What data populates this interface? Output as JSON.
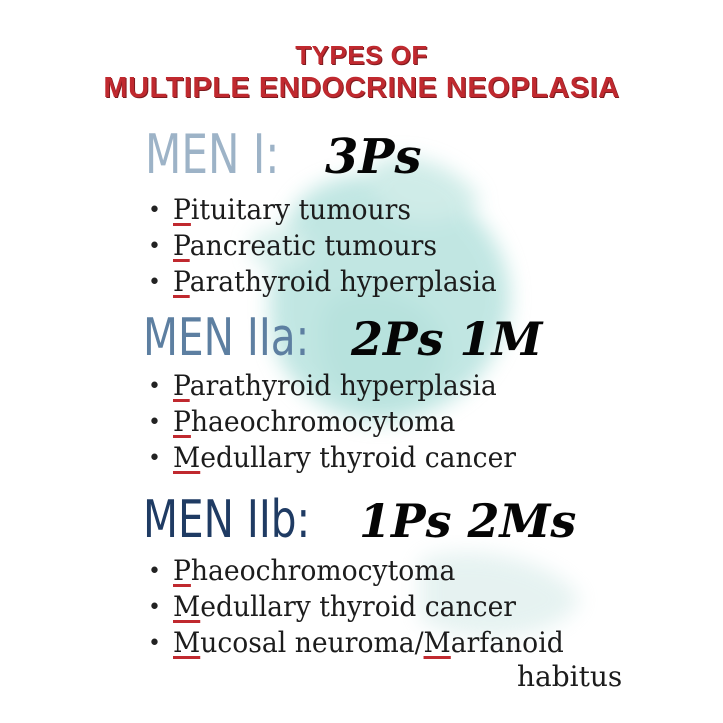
{
  "title": {
    "line1": "Types of",
    "line2": "Multiple Endocrine Neoplasia"
  },
  "colors": {
    "title_red": "#c0292f",
    "men1_blue": "#9db3c7",
    "men2a_blue": "#5d7fa1",
    "men2b_blue": "#1f3b63",
    "watercolor_teal": "#8fd3cc",
    "underline_red": "#c0292f"
  },
  "sections": [
    {
      "label": "MEN I:",
      "code": "3Ps",
      "items": [
        {
          "initial": "P",
          "rest": "ituitary tumours"
        },
        {
          "initial": "P",
          "rest": "ancreatic tumours"
        },
        {
          "initial": "P",
          "rest": "arathyroid hyperplasia"
        }
      ]
    },
    {
      "label": "MEN IIa:",
      "code": "2Ps 1M",
      "items": [
        {
          "initial": "P",
          "rest": "arathyroid hyperplasia"
        },
        {
          "initial": "P",
          "rest": "haeochromocytoma"
        },
        {
          "initial": "M",
          "rest": "edullary thyroid cancer"
        }
      ]
    },
    {
      "label": "MEN IIb:",
      "code": "1Ps 2Ms",
      "items": [
        {
          "initial": "P",
          "rest": "haeochromocytoma"
        },
        {
          "initial": "M",
          "rest": "edullary thyroid cancer"
        },
        {
          "initial": "M",
          "rest": "ucosal neuroma/",
          "initial2": "M",
          "rest2": "arfanoid"
        }
      ],
      "continuation": "habitus"
    }
  ],
  "bullet": "•"
}
